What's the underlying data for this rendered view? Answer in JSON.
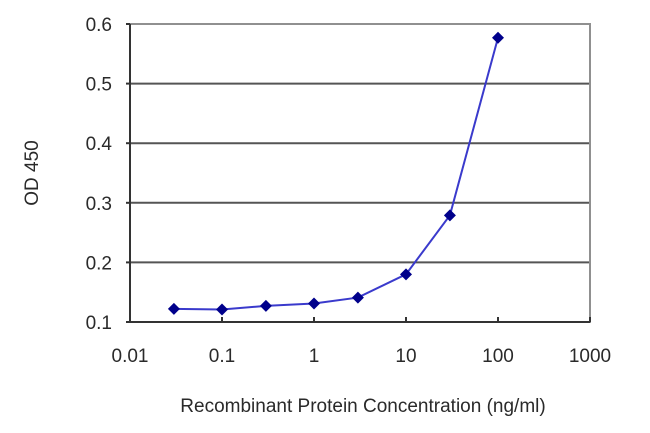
{
  "chart_data": {
    "type": "line",
    "title": "",
    "xlabel": "Recombinant Protein Concentration (ng/ml)",
    "ylabel": "OD 450",
    "xscale": "log",
    "xlim": [
      0.01,
      1000
    ],
    "ylim": [
      0.1,
      0.6
    ],
    "x_ticks": [
      "0.01",
      "0.1",
      "1",
      "10",
      "100",
      "1000"
    ],
    "y_ticks": [
      "0.1",
      "0.2",
      "0.3",
      "0.4",
      "0.5",
      "0.6"
    ],
    "grid": "horizontal",
    "legend": null,
    "series": [
      {
        "name": "OD 450",
        "color": "#00008b",
        "marker": "diamond",
        "x": [
          0.03,
          0.1,
          0.3,
          1,
          3,
          10,
          30,
          100
        ],
        "values": [
          0.122,
          0.121,
          0.127,
          0.131,
          0.141,
          0.18,
          0.279,
          0.577
        ]
      }
    ]
  },
  "colors": {
    "line": "#3a3acc",
    "marker": "#00008b",
    "grid": "#555555",
    "frame": "#888888"
  }
}
